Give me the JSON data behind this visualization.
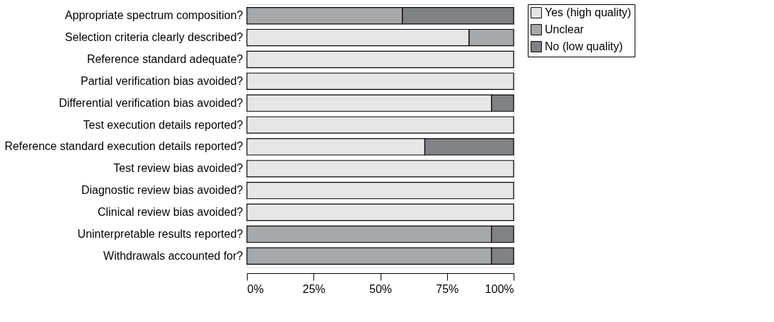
{
  "chart_data": {
    "type": "bar",
    "orientation": "horizontal",
    "stacked": true,
    "categories": [
      "Appropriate spectrum composition?",
      "Selection criteria clearly described?",
      "Reference standard adequate?",
      "Partial verification bias avoided?",
      "Differential verification bias avoided?",
      "Test execution details reported?",
      "Reference standard execution details reported?",
      "Test review bias avoided?",
      "Diagnostic review bias avoided?",
      "Clinical review bias avoided?",
      "Uninterpretable results reported?",
      "Withdrawals accounted for?"
    ],
    "series": [
      {
        "name": "Yes (high quality)",
        "color": "#e6e6e7",
        "values": [
          0,
          83.3,
          100,
          100,
          91.7,
          100,
          66.7,
          100,
          100,
          100,
          0,
          0
        ]
      },
      {
        "name": "Unclear",
        "color": "#a7a8aa",
        "values": [
          58.3,
          16.7,
          0,
          0,
          0,
          0,
          0,
          0,
          0,
          0,
          91.7,
          91.7
        ]
      },
      {
        "name": "No (low quality)",
        "color": "#818285",
        "values": [
          41.7,
          0,
          0,
          0,
          8.3,
          0,
          33.3,
          0,
          0,
          0,
          8.3,
          8.3
        ]
      }
    ],
    "xlim": [
      0,
      100
    ],
    "xticks": [
      {
        "value": 0,
        "label": "0%"
      },
      {
        "value": 25,
        "label": "25%"
      },
      {
        "value": 50,
        "label": "50%"
      },
      {
        "value": 75,
        "label": "75%"
      },
      {
        "value": 100,
        "label": "100%"
      }
    ],
    "grid": false,
    "legend": "top right"
  }
}
